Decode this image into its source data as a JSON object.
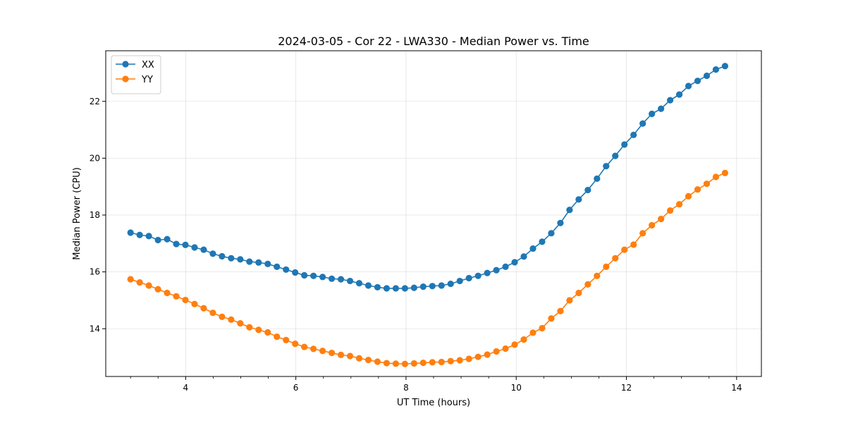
{
  "chart_data": {
    "type": "line",
    "title": "2024-03-05 - Cor 22 - LWA330 - Median Power vs. Time",
    "xlabel": "UT Time (hours)",
    "ylabel": "Median Power (CPU)",
    "xlim": [
      2.55,
      14.45
    ],
    "ylim": [
      12.32,
      23.78
    ],
    "xticks": [
      4,
      6,
      8,
      10,
      12,
      14
    ],
    "xtick_labels": [
      "4",
      "6",
      "8",
      "10",
      "12",
      "14"
    ],
    "x_minor_step": 0.5,
    "yticks": [
      14,
      16,
      18,
      20,
      22
    ],
    "ytick_labels": [
      "14",
      "16",
      "18",
      "20",
      "22"
    ],
    "grid": true,
    "legend_position": "top-left",
    "x": [
      3.0,
      3.166,
      3.332,
      3.498,
      3.664,
      3.83,
      3.996,
      4.162,
      4.328,
      4.494,
      4.66,
      4.826,
      4.992,
      5.158,
      5.324,
      5.49,
      5.656,
      5.822,
      5.988,
      6.154,
      6.32,
      6.486,
      6.652,
      6.818,
      6.984,
      7.15,
      7.316,
      7.482,
      7.648,
      7.814,
      7.98,
      8.146,
      8.312,
      8.478,
      8.644,
      8.81,
      8.976,
      9.142,
      9.308,
      9.474,
      9.64,
      9.806,
      9.972,
      10.138,
      10.304,
      10.47,
      10.636,
      10.802,
      10.968,
      11.134,
      11.3,
      11.466,
      11.632,
      11.798,
      11.964,
      12.13,
      12.296,
      12.462,
      12.628,
      12.794,
      12.96,
      13.126,
      13.292,
      13.458,
      13.624,
      13.79
    ],
    "series": [
      {
        "name": "XX",
        "color": "#1f77b4",
        "values": [
          17.38,
          17.3,
          17.26,
          17.12,
          17.15,
          16.98,
          16.95,
          16.86,
          16.78,
          16.64,
          16.55,
          16.48,
          16.44,
          16.36,
          16.33,
          16.28,
          16.18,
          16.08,
          15.98,
          15.88,
          15.86,
          15.82,
          15.76,
          15.74,
          15.68,
          15.6,
          15.52,
          15.46,
          15.42,
          15.42,
          15.42,
          15.44,
          15.48,
          15.5,
          15.52,
          15.58,
          15.68,
          15.78,
          15.86,
          15.96,
          16.06,
          16.18,
          16.34,
          16.54,
          16.82,
          17.06,
          17.36,
          17.72,
          18.18,
          18.55,
          18.88,
          19.28,
          19.72,
          20.08,
          20.48,
          20.82,
          21.22,
          21.56,
          21.74,
          22.04,
          22.24,
          22.54,
          22.72,
          22.9,
          23.12,
          23.24
        ]
      },
      {
        "name": "YY",
        "color": "#ff7f0e",
        "values": [
          15.74,
          15.63,
          15.52,
          15.39,
          15.26,
          15.14,
          15.01,
          14.87,
          14.72,
          14.56,
          14.42,
          14.32,
          14.19,
          14.05,
          13.96,
          13.87,
          13.72,
          13.6,
          13.47,
          13.36,
          13.29,
          13.22,
          13.15,
          13.08,
          13.04,
          12.96,
          12.9,
          12.84,
          12.79,
          12.77,
          12.76,
          12.78,
          12.8,
          12.82,
          12.83,
          12.86,
          12.89,
          12.94,
          13.01,
          13.09,
          13.2,
          13.3,
          13.44,
          13.62,
          13.86,
          14.02,
          14.36,
          14.62,
          15.0,
          15.26,
          15.56,
          15.86,
          16.18,
          16.48,
          16.78,
          16.96,
          17.36,
          17.64,
          17.86,
          18.16,
          18.38,
          18.66,
          18.9,
          19.1,
          19.34,
          19.48
        ]
      }
    ]
  }
}
